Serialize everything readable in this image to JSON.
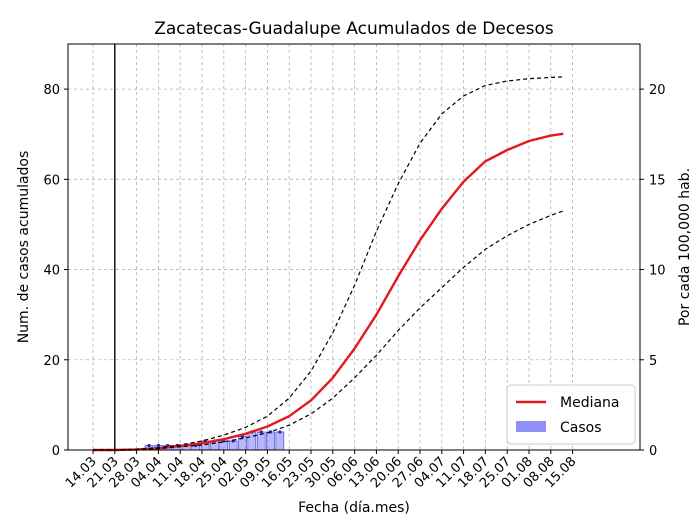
{
  "chart_data": {
    "type": "line",
    "title": "Zacatecas-Guadalupe Acumulados de Decesos",
    "xlabel": "Fecha (día.mes)",
    "ylabel": "Num. de casos acumulados",
    "ylabel_right": "Por cada 100,000 hab.",
    "ylim": [
      0,
      90
    ],
    "ylim_right": [
      0,
      22.5
    ],
    "x_tick_labels": [
      "14.03",
      "21.03",
      "28.03",
      "04.04",
      "11.04",
      "18.04",
      "25.04",
      "02.05",
      "09.05",
      "16.05",
      "23.05",
      "30.05",
      "06.06",
      "13.06",
      "20.06",
      "27.06",
      "04.07",
      "11.07",
      "18.07",
      "25.07",
      "01.08",
      "08.08",
      "15.08"
    ],
    "y_ticks": [
      0,
      20,
      40,
      60,
      80
    ],
    "y_ticks_right": [
      0,
      5,
      10,
      15,
      20
    ],
    "vertical_line_x": "21.03",
    "grid": true,
    "legend_position": "lower right",
    "series": [
      {
        "name": "Mediana",
        "style": "solid",
        "color": "#e31a1c",
        "x": [
          "14.03",
          "21.03",
          "28.03",
          "04.04",
          "11.04",
          "18.04",
          "25.04",
          "02.05",
          "09.05",
          "16.05",
          "23.05",
          "30.05",
          "06.06",
          "13.06",
          "20.06",
          "27.06",
          "04.07",
          "11.07",
          "18.07",
          "25.07",
          "01.08",
          "08.08",
          "12.08"
        ],
        "values": [
          0,
          0,
          0.1,
          0.4,
          0.9,
          1.5,
          2.4,
          3.6,
          5.2,
          7.5,
          11.0,
          16.0,
          22.5,
          30.0,
          38.5,
          46.5,
          53.5,
          59.5,
          64.0,
          66.5,
          68.5,
          69.7,
          70.1
        ]
      },
      {
        "name": "upper",
        "style": "dashed",
        "color": "#000000",
        "x": [
          "14.03",
          "21.03",
          "28.03",
          "04.04",
          "11.04",
          "18.04",
          "25.04",
          "02.05",
          "09.05",
          "16.05",
          "23.05",
          "30.05",
          "06.06",
          "13.06",
          "20.06",
          "27.06",
          "04.07",
          "11.07",
          "18.07",
          "25.07",
          "01.08",
          "08.08",
          "12.08"
        ],
        "values": [
          0,
          0,
          0.1,
          0.5,
          1.1,
          2.0,
          3.3,
          5.0,
          7.5,
          11.5,
          17.5,
          26.0,
          36.5,
          48.5,
          59.0,
          68.0,
          74.5,
          78.5,
          80.8,
          81.8,
          82.3,
          82.6,
          82.7
        ]
      },
      {
        "name": "lower",
        "style": "dashed",
        "color": "#000000",
        "x": [
          "14.03",
          "21.03",
          "28.03",
          "04.04",
          "11.04",
          "18.04",
          "25.04",
          "02.05",
          "09.05",
          "16.05",
          "23.05",
          "30.05",
          "06.06",
          "13.06",
          "20.06",
          "27.06",
          "04.07",
          "11.07",
          "18.07",
          "25.07",
          "01.08",
          "08.08",
          "12.08"
        ],
        "values": [
          0,
          0,
          0.1,
          0.3,
          0.7,
          1.1,
          1.8,
          2.7,
          3.8,
          5.5,
          8.0,
          11.5,
          16.0,
          21.0,
          26.5,
          31.5,
          36.0,
          40.5,
          44.5,
          47.5,
          50.0,
          52.0,
          53.0
        ]
      },
      {
        "name": "Casos",
        "style": "bar",
        "color": "#7b7bf5",
        "x": [
          "01.04",
          "04.04",
          "07.04",
          "10.04",
          "13.04",
          "16.04",
          "19.04",
          "22.04",
          "25.04",
          "28.04",
          "01.05",
          "04.05",
          "07.05",
          "10.05",
          "13.05"
        ],
        "values": [
          1,
          1,
          1,
          1,
          1,
          1,
          2,
          2,
          2,
          2,
          3,
          4,
          4,
          4,
          4
        ]
      }
    ]
  }
}
